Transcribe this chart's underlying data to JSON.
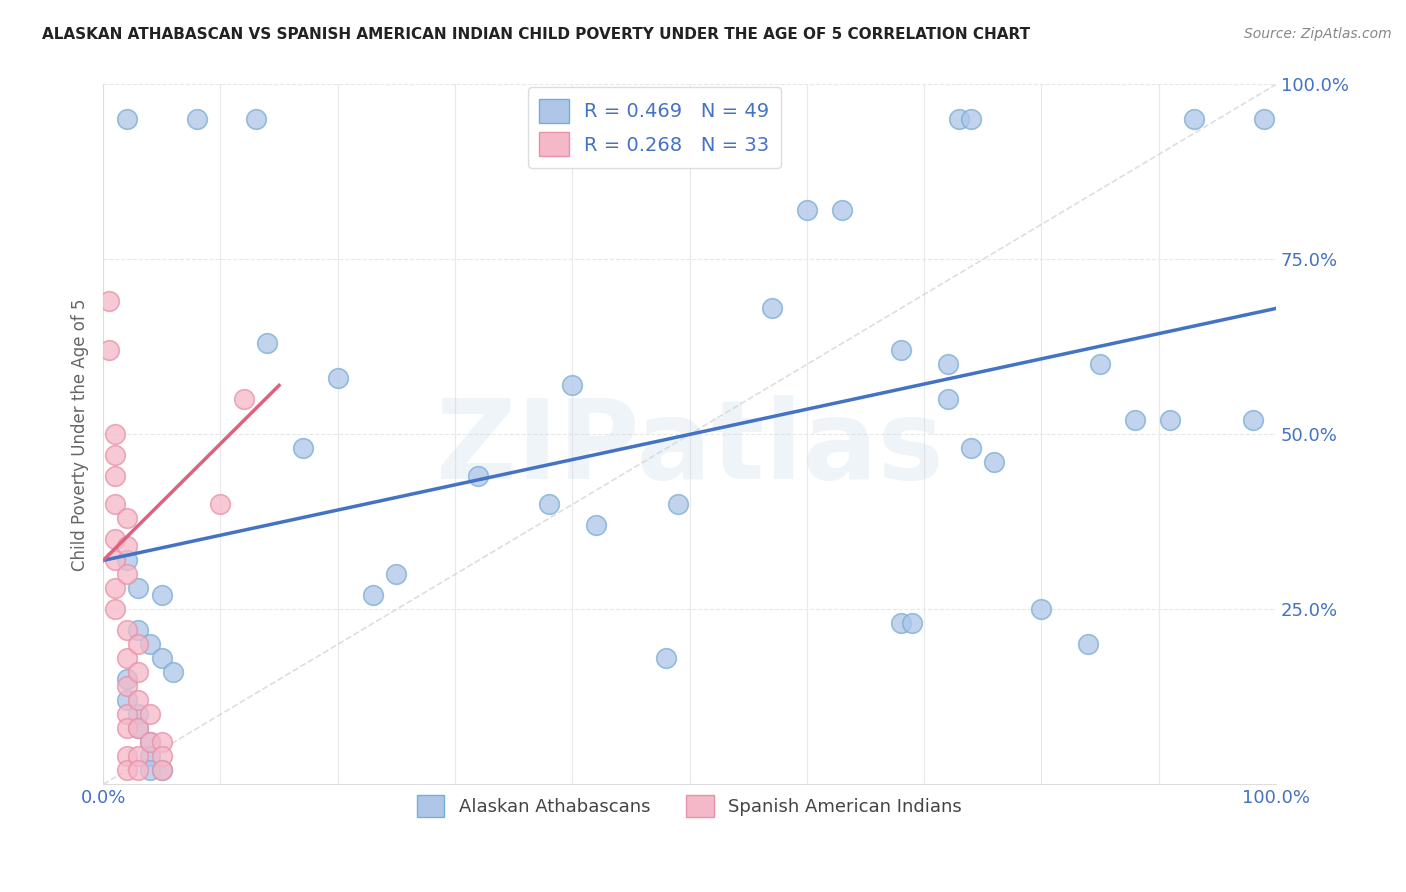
{
  "title": "ALASKAN ATHABASCAN VS SPANISH AMERICAN INDIAN CHILD POVERTY UNDER THE AGE OF 5 CORRELATION CHART",
  "source": "Source: ZipAtlas.com",
  "ylabel": "Child Poverty Under the Age of 5",
  "watermark": "ZIPatlas",
  "blue_label": "Alaskan Athabascans",
  "pink_label": "Spanish American Indians",
  "blue_R": "R = 0.469",
  "blue_N": "N = 49",
  "pink_R": "R = 0.268",
  "pink_N": "N = 33",
  "xlim": [
    0.0,
    1.0
  ],
  "ylim": [
    0.0,
    1.0
  ],
  "blue_color": "#aec6e8",
  "pink_color": "#f5b8c8",
  "blue_edge_color": "#7aadd4",
  "pink_edge_color": "#e890a8",
  "trendline_blue": "#4472c4",
  "trendline_pink": "#e06080",
  "dashed_line_color": "#d0d0d0",
  "background_color": "#ffffff",
  "grid_color": "#e8e8e8",
  "blue_scatter": [
    [
      0.02,
      0.95
    ],
    [
      0.08,
      0.95
    ],
    [
      0.13,
      0.95
    ],
    [
      0.73,
      0.95
    ],
    [
      0.74,
      0.95
    ],
    [
      0.93,
      0.95
    ],
    [
      0.99,
      0.95
    ],
    [
      0.6,
      0.82
    ],
    [
      0.63,
      0.82
    ],
    [
      0.57,
      0.68
    ],
    [
      0.14,
      0.63
    ],
    [
      0.2,
      0.58
    ],
    [
      0.4,
      0.57
    ],
    [
      0.68,
      0.62
    ],
    [
      0.72,
      0.6
    ],
    [
      0.17,
      0.48
    ],
    [
      0.32,
      0.44
    ],
    [
      0.38,
      0.4
    ],
    [
      0.72,
      0.55
    ],
    [
      0.74,
      0.48
    ],
    [
      0.76,
      0.46
    ],
    [
      0.85,
      0.6
    ],
    [
      0.88,
      0.52
    ],
    [
      0.91,
      0.52
    ],
    [
      0.98,
      0.52
    ],
    [
      0.42,
      0.37
    ],
    [
      0.49,
      0.4
    ],
    [
      0.23,
      0.27
    ],
    [
      0.25,
      0.3
    ],
    [
      0.02,
      0.32
    ],
    [
      0.03,
      0.28
    ],
    [
      0.05,
      0.27
    ],
    [
      0.03,
      0.22
    ],
    [
      0.04,
      0.2
    ],
    [
      0.05,
      0.18
    ],
    [
      0.06,
      0.16
    ],
    [
      0.48,
      0.18
    ],
    [
      0.68,
      0.23
    ],
    [
      0.69,
      0.23
    ],
    [
      0.8,
      0.25
    ],
    [
      0.84,
      0.2
    ],
    [
      0.02,
      0.15
    ],
    [
      0.02,
      0.12
    ],
    [
      0.03,
      0.1
    ],
    [
      0.03,
      0.08
    ],
    [
      0.04,
      0.06
    ],
    [
      0.04,
      0.04
    ],
    [
      0.04,
      0.02
    ],
    [
      0.05,
      0.02
    ]
  ],
  "pink_scatter": [
    [
      0.005,
      0.69
    ],
    [
      0.005,
      0.62
    ],
    [
      0.01,
      0.5
    ],
    [
      0.01,
      0.47
    ],
    [
      0.01,
      0.44
    ],
    [
      0.01,
      0.4
    ],
    [
      0.12,
      0.55
    ],
    [
      0.01,
      0.35
    ],
    [
      0.01,
      0.32
    ],
    [
      0.01,
      0.28
    ],
    [
      0.01,
      0.25
    ],
    [
      0.02,
      0.38
    ],
    [
      0.02,
      0.34
    ],
    [
      0.02,
      0.3
    ],
    [
      0.02,
      0.22
    ],
    [
      0.02,
      0.18
    ],
    [
      0.02,
      0.14
    ],
    [
      0.02,
      0.1
    ],
    [
      0.02,
      0.08
    ],
    [
      0.02,
      0.04
    ],
    [
      0.02,
      0.02
    ],
    [
      0.03,
      0.2
    ],
    [
      0.03,
      0.16
    ],
    [
      0.03,
      0.12
    ],
    [
      0.03,
      0.08
    ],
    [
      0.03,
      0.04
    ],
    [
      0.03,
      0.02
    ],
    [
      0.04,
      0.1
    ],
    [
      0.04,
      0.06
    ],
    [
      0.05,
      0.06
    ],
    [
      0.05,
      0.04
    ],
    [
      0.05,
      0.02
    ],
    [
      0.1,
      0.4
    ]
  ],
  "blue_trend_x": [
    0.0,
    1.0
  ],
  "blue_trend_y": [
    0.32,
    0.68
  ],
  "pink_trend_x": [
    0.0,
    0.15
  ],
  "pink_trend_y": [
    0.32,
    0.57
  ],
  "dashed_trend_x": [
    0.0,
    1.0
  ],
  "dashed_trend_y": [
    0.0,
    1.0
  ]
}
